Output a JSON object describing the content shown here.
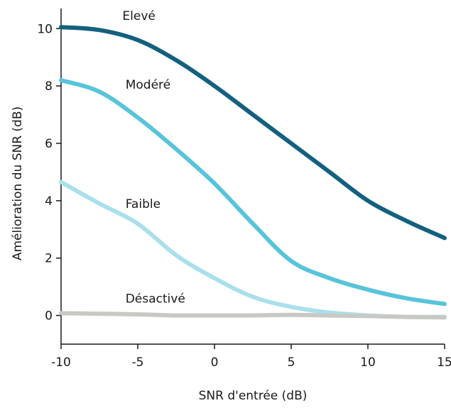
{
  "chart_data": {
    "type": "line",
    "title": "",
    "xlabel": "SNR d'entrée (dB)",
    "ylabel": "Amélioration du SNR (dB)",
    "xlim": [
      -10,
      15
    ],
    "ylim": [
      -1,
      10.7
    ],
    "xticks": [
      -10,
      -5,
      0,
      5,
      10,
      15
    ],
    "yticks": [
      0,
      2,
      4,
      6,
      8,
      10
    ],
    "xtick_labels": [
      "-10",
      "-5",
      "0",
      "5",
      "10",
      "15"
    ],
    "ytick_labels": [
      "0",
      "2",
      "4",
      "6",
      "8",
      "10"
    ],
    "grid": false,
    "legend": "inline labels",
    "series": [
      {
        "name": "Elevé",
        "color": "#13607f",
        "x": [
          -10,
          -7.5,
          -5,
          -2.5,
          0,
          2.5,
          5,
          7.5,
          10,
          12.5,
          15
        ],
        "y": [
          10.05,
          9.95,
          9.6,
          8.9,
          8.0,
          7.0,
          6.0,
          5.0,
          4.0,
          3.3,
          2.7
        ]
      },
      {
        "name": "Modéré",
        "color": "#58c4d9",
        "x": [
          -10,
          -7.5,
          -5,
          -2.5,
          0,
          2.5,
          5,
          7.5,
          10,
          12.5,
          15
        ],
        "y": [
          8.2,
          7.8,
          6.9,
          5.8,
          4.6,
          3.2,
          1.9,
          1.3,
          0.9,
          0.6,
          0.4
        ]
      },
      {
        "name": "Faible",
        "color": "#a9e0ec",
        "x": [
          -10,
          -7.5,
          -5,
          -2.5,
          0,
          2.5,
          5,
          7.5,
          10,
          12.5,
          15
        ],
        "y": [
          4.65,
          3.9,
          3.2,
          2.1,
          1.3,
          0.65,
          0.3,
          0.1,
          0.0,
          -0.05,
          -0.05
        ]
      },
      {
        "name": "Désactivé",
        "color": "#c8c9c5",
        "x": [
          -10,
          -7.5,
          -5,
          -2.5,
          0,
          2.5,
          5,
          7.5,
          10,
          12.5,
          15
        ],
        "y": [
          0.08,
          0.06,
          0.04,
          0.0,
          0.0,
          0.0,
          0.02,
          0.0,
          -0.02,
          -0.05,
          -0.07
        ]
      }
    ]
  }
}
